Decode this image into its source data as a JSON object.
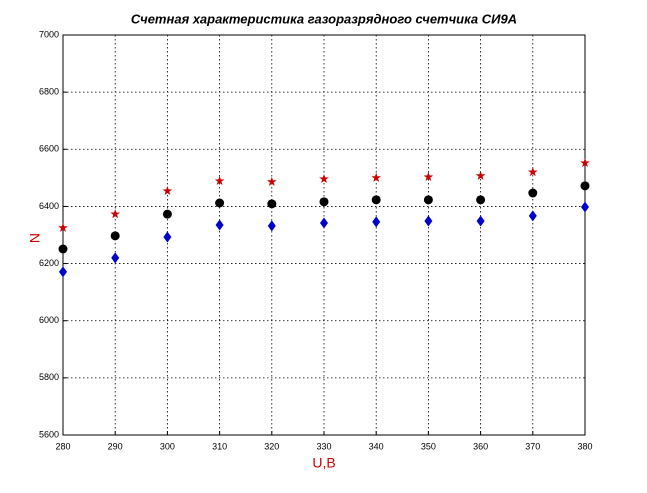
{
  "chart_data": {
    "type": "scatter",
    "title": "Счетная характеристика газоразрядного счетчика СИ9А",
    "x_label": "U,B",
    "y_label": "N",
    "x": [
      280,
      290,
      300,
      310,
      320,
      330,
      340,
      350,
      360,
      370,
      380
    ],
    "series": [
      {
        "color": "#cc0000",
        "marker": "star",
        "values": [
          6325,
          6373,
          6454,
          6489,
          6486,
          6496,
          6500,
          6503,
          6507,
          6520,
          6552
        ]
      },
      {
        "color": "#000000",
        "marker": "circle",
        "values": [
          6251,
          6297,
          6373,
          6412,
          6409,
          6416,
          6423,
          6423,
          6423,
          6447,
          6472
        ]
      },
      {
        "color": "#0000cc",
        "marker": "diamond",
        "values": [
          6171,
          6220,
          6293,
          6335,
          6332,
          6342,
          6346,
          6349,
          6349,
          6367,
          6398
        ]
      }
    ],
    "xlim": [
      280,
      380
    ],
    "xticks": [
      280,
      290,
      300,
      310,
      320,
      330,
      340,
      350,
      360,
      370,
      380
    ],
    "ylim": [
      5600,
      7000
    ],
    "yticks": [
      5600,
      5800,
      6000,
      6200,
      6400,
      6600,
      6800,
      7000
    ],
    "grid": true
  }
}
